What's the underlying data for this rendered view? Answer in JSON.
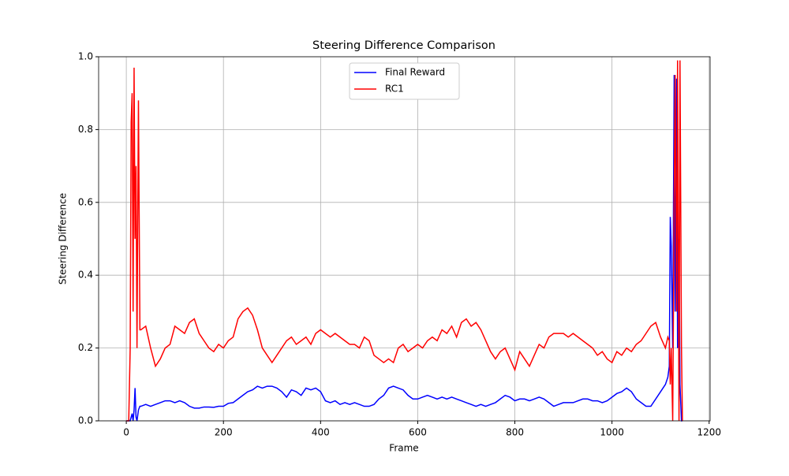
{
  "chart_data": {
    "type": "line",
    "title": "Steering Difference Comparison",
    "xlabel": "Frame",
    "ylabel": "Steering Difference",
    "x": [
      0,
      5,
      8,
      10,
      12,
      14,
      16,
      18,
      20,
      22,
      25,
      28,
      30,
      40,
      50,
      60,
      70,
      80,
      90,
      100,
      110,
      120,
      130,
      140,
      150,
      160,
      170,
      180,
      190,
      200,
      210,
      220,
      230,
      240,
      250,
      260,
      270,
      280,
      290,
      300,
      310,
      320,
      330,
      340,
      350,
      360,
      370,
      380,
      390,
      400,
      410,
      420,
      430,
      440,
      450,
      460,
      470,
      480,
      490,
      500,
      510,
      520,
      530,
      540,
      550,
      560,
      570,
      580,
      590,
      600,
      610,
      620,
      630,
      640,
      650,
      660,
      670,
      680,
      690,
      700,
      710,
      720,
      730,
      740,
      750,
      760,
      770,
      780,
      790,
      800,
      810,
      820,
      830,
      840,
      850,
      860,
      870,
      880,
      890,
      900,
      910,
      920,
      930,
      940,
      950,
      960,
      970,
      980,
      990,
      1000,
      1010,
      1020,
      1030,
      1040,
      1050,
      1060,
      1070,
      1080,
      1090,
      1100,
      1110,
      1115,
      1118,
      1120,
      1122,
      1125,
      1128,
      1130,
      1133,
      1135,
      1138,
      1140,
      1143,
      1145
    ],
    "series": [
      {
        "name": "Final Reward",
        "color": "#0000ff",
        "values": [
          0,
          0,
          0,
          0.01,
          0.02,
          0,
          0.03,
          0.09,
          0.01,
          0,
          0.03,
          0.04,
          0.04,
          0.045,
          0.04,
          0.045,
          0.05,
          0.055,
          0.055,
          0.05,
          0.055,
          0.05,
          0.04,
          0.035,
          0.035,
          0.038,
          0.038,
          0.037,
          0.04,
          0.04,
          0.048,
          0.05,
          0.06,
          0.07,
          0.08,
          0.085,
          0.095,
          0.09,
          0.095,
          0.095,
          0.09,
          0.08,
          0.065,
          0.085,
          0.08,
          0.07,
          0.09,
          0.085,
          0.09,
          0.08,
          0.055,
          0.05,
          0.055,
          0.045,
          0.05,
          0.045,
          0.05,
          0.045,
          0.04,
          0.04,
          0.045,
          0.06,
          0.07,
          0.09,
          0.095,
          0.09,
          0.085,
          0.07,
          0.06,
          0.06,
          0.065,
          0.07,
          0.065,
          0.06,
          0.065,
          0.06,
          0.065,
          0.06,
          0.055,
          0.05,
          0.045,
          0.04,
          0.045,
          0.04,
          0.045,
          0.05,
          0.06,
          0.07,
          0.065,
          0.055,
          0.06,
          0.06,
          0.055,
          0.06,
          0.065,
          0.06,
          0.05,
          0.04,
          0.045,
          0.05,
          0.05,
          0.05,
          0.055,
          0.06,
          0.06,
          0.055,
          0.055,
          0.05,
          0.055,
          0.065,
          0.075,
          0.08,
          0.09,
          0.08,
          0.06,
          0.05,
          0.04,
          0.04,
          0.06,
          0.08,
          0.1,
          0.12,
          0.15,
          0.56,
          0.48,
          0.2,
          0.95,
          0.3,
          0.94,
          0.2,
          0.5,
          0.1,
          0,
          0
        ]
      },
      {
        "name": "RC1",
        "color": "#ff0000",
        "values": [
          0,
          0,
          0.2,
          0.82,
          0.9,
          0.3,
          0.97,
          0.5,
          0.7,
          0.2,
          0.88,
          0.25,
          0.25,
          0.26,
          0.2,
          0.15,
          0.17,
          0.2,
          0.21,
          0.26,
          0.25,
          0.24,
          0.27,
          0.28,
          0.24,
          0.22,
          0.2,
          0.19,
          0.21,
          0.2,
          0.22,
          0.23,
          0.28,
          0.3,
          0.31,
          0.29,
          0.25,
          0.2,
          0.18,
          0.16,
          0.18,
          0.2,
          0.22,
          0.23,
          0.21,
          0.22,
          0.23,
          0.21,
          0.24,
          0.25,
          0.24,
          0.23,
          0.24,
          0.23,
          0.22,
          0.21,
          0.21,
          0.2,
          0.23,
          0.22,
          0.18,
          0.17,
          0.16,
          0.17,
          0.16,
          0.2,
          0.21,
          0.19,
          0.2,
          0.21,
          0.2,
          0.22,
          0.23,
          0.22,
          0.25,
          0.24,
          0.26,
          0.23,
          0.27,
          0.28,
          0.26,
          0.27,
          0.25,
          0.22,
          0.19,
          0.17,
          0.19,
          0.2,
          0.17,
          0.14,
          0.19,
          0.17,
          0.15,
          0.18,
          0.21,
          0.2,
          0.23,
          0.24,
          0.24,
          0.24,
          0.23,
          0.24,
          0.23,
          0.22,
          0.21,
          0.2,
          0.18,
          0.19,
          0.17,
          0.16,
          0.19,
          0.18,
          0.2,
          0.19,
          0.21,
          0.22,
          0.24,
          0.26,
          0.27,
          0.23,
          0.2,
          0.23,
          0.22,
          0.1,
          0.2,
          0,
          0.6,
          0.95,
          0.3,
          0.99,
          0,
          0.99,
          0.21,
          0
        ]
      }
    ],
    "xlim": [
      -57,
      1202
    ],
    "ylim": [
      0,
      1
    ],
    "xticks": [
      0,
      200,
      400,
      600,
      800,
      1000,
      1200
    ],
    "yticks": [
      {
        "value": 0,
        "label": "0.0"
      },
      0.2,
      0.4,
      0.6,
      0.8,
      {
        "value": 1,
        "label": "1.0"
      }
    ],
    "grid": true,
    "legend": "upper center"
  }
}
